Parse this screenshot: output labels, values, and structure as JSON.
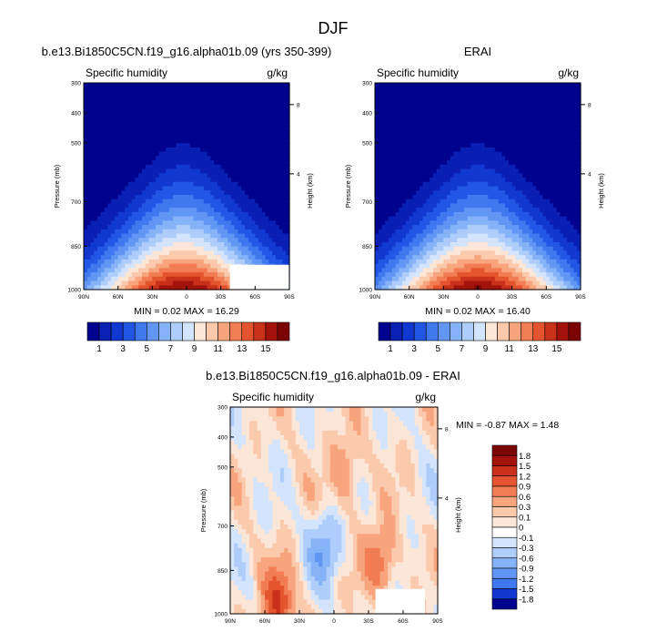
{
  "figure": {
    "title": "DJF"
  },
  "colors": {
    "seq_scale": [
      "#00038e",
      "#0a1fb4",
      "#1238d2",
      "#2257e6",
      "#3f78ef",
      "#6196f4",
      "#86b3f7",
      "#aecdfa",
      "#d3e4fc",
      "#fbe6d8",
      "#fbc9ac",
      "#f8a57e",
      "#f27c53",
      "#e4552f",
      "#c9311a",
      "#a3130c",
      "#7b0505"
    ],
    "div_scale": [
      "#00038e",
      "#1238d2",
      "#3f78ef",
      "#6196f4",
      "#86b3f7",
      "#aecdfa",
      "#d3e4fc",
      "#ffffff",
      "#fbe6d8",
      "#fbc9ac",
      "#f8a57e",
      "#f27c53",
      "#e4552f",
      "#c9311a",
      "#a3130c",
      "#7b0505"
    ]
  },
  "chart_data": [
    {
      "type": "heatmap",
      "title": "b.e13.Bi1850C5CN.f19_g16.alpha01b.09 (yrs 350-399)",
      "left_label": "Specific humidity",
      "right_label": "g/kg",
      "ylabel": "Pressure (mb)",
      "y2label": "Height (km)",
      "x_ticks": [
        "90N",
        "60N",
        "30N",
        "0",
        "30S",
        "60S",
        "90S"
      ],
      "y_ticks": [
        "300",
        "400",
        "500",
        "700",
        "850",
        "1000"
      ],
      "y2_ticks": [
        "8",
        "4"
      ],
      "stats": "MIN =  0.02  MAX = 16.29",
      "colorbar_labels": [
        "1",
        "3",
        "5",
        "7",
        "9",
        "11",
        "13",
        "15"
      ],
      "contour_levels": [
        1,
        2,
        3,
        4,
        5,
        6,
        7,
        8,
        9,
        10,
        11,
        12,
        13,
        14,
        15,
        16
      ],
      "peak_value": 16.29,
      "peak_location": {
        "lat": 3,
        "pressure_mb": 1000
      }
    },
    {
      "type": "heatmap",
      "title": "ERAI",
      "left_label": "Specific humidity",
      "right_label": "g/kg",
      "ylabel": "Pressure (mb)",
      "y2label": "Height (km)",
      "x_ticks": [
        "90N",
        "60N",
        "30N",
        "0",
        "30S",
        "60S",
        "90S"
      ],
      "y_ticks": [
        "300",
        "400",
        "500",
        "700",
        "850",
        "1000"
      ],
      "y2_ticks": [
        "8",
        "4"
      ],
      "stats": "MIN =  0.02  MAX = 16.40",
      "colorbar_labels": [
        "1",
        "3",
        "5",
        "7",
        "9",
        "11",
        "13",
        "15"
      ],
      "contour_levels": [
        1,
        2,
        3,
        4,
        5,
        6,
        7,
        8,
        9,
        10,
        11,
        12,
        13,
        14,
        15,
        16
      ],
      "peak_value": 16.4,
      "peak_location": {
        "lat": 0,
        "pressure_mb": 1000
      }
    },
    {
      "type": "heatmap",
      "title": "b.e13.Bi1850C5CN.f19_g16.alpha01b.09 - ERAI",
      "left_label": "Specific humidity",
      "right_label": "g/kg",
      "ylabel": "Pressure (mb)",
      "y2label": "Height (km)",
      "x_ticks": [
        "90N",
        "60N",
        "30N",
        "0",
        "30S",
        "60S",
        "90S"
      ],
      "y_ticks": [
        "300",
        "400",
        "500",
        "700",
        "850",
        "1000"
      ],
      "y2_ticks": [
        "8",
        "4"
      ],
      "stats": "MIN = -0.87  MAX =  1.48",
      "colorbar_labels": [
        "1.8",
        "1.5",
        "1.2",
        "0.9",
        "0.6",
        "0.3",
        "0.1",
        "0",
        "-0.1",
        "-0.3",
        "-0.6",
        "-0.9",
        "-1.2",
        "-1.5",
        "-1.8"
      ],
      "contour_levels": [
        -1.8,
        -1.5,
        -1.2,
        -0.9,
        -0.6,
        -0.3,
        -0.1,
        0.1,
        0.3,
        0.6,
        0.9,
        1.2,
        1.5,
        1.8
      ],
      "features": [
        {
          "lat": 8,
          "pressure_mb": 780,
          "value": -0.8
        },
        {
          "lat": -40,
          "pressure_mb": 820,
          "value": 0.9
        },
        {
          "lat": 48,
          "pressure_mb": 960,
          "value": 1.2
        },
        {
          "lat": -10,
          "pressure_mb": 520,
          "value": 0.6
        }
      ]
    }
  ]
}
